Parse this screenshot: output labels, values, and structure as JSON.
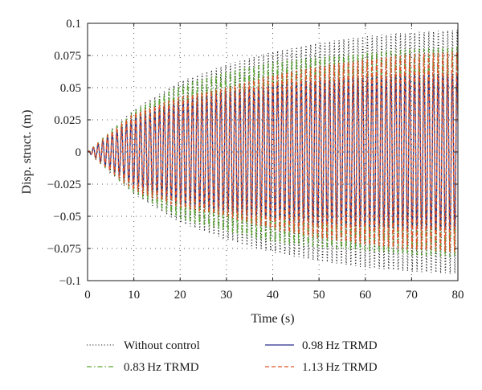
{
  "chart_data": {
    "type": "line",
    "xlabel": "Time (s)",
    "ylabel": "Disp. struct. (m)",
    "xlim": [
      0,
      80
    ],
    "ylim": [
      -0.1,
      0.1
    ],
    "x_ticks": [
      "0",
      "10",
      "20",
      "30",
      "40",
      "50",
      "60",
      "70",
      "80"
    ],
    "y_ticks": [
      "0.1",
      "0.075",
      "0.05",
      "0.025",
      "0",
      "−0.025",
      "−0.05",
      "−0.075",
      "−0.1"
    ],
    "grid": "dotted",
    "legend_position": "bottom",
    "oscillation_frequency_hz": 0.98,
    "series": [
      {
        "name": "Without control",
        "style": "dotted",
        "color": "#222222",
        "envelope": {
          "t": [
            0,
            10,
            20,
            30,
            40,
            50,
            60,
            70,
            80
          ],
          "amplitude": [
            0,
            0.033,
            0.055,
            0.068,
            0.078,
            0.085,
            0.09,
            0.093,
            0.095
          ]
        }
      },
      {
        "name": "0.83 Hz TRMD",
        "style": "dash-dot",
        "color": "#5aa832",
        "envelope": {
          "t": [
            0,
            10,
            20,
            30,
            40,
            50,
            60,
            70,
            80
          ],
          "amplitude": [
            0,
            0.032,
            0.052,
            0.062,
            0.07,
            0.074,
            0.077,
            0.08,
            0.082
          ]
        }
      },
      {
        "name": "0.98 Hz TRMD",
        "style": "solid",
        "color": "#2b2f8f",
        "envelope": {
          "t": [
            0,
            10,
            20,
            30,
            40,
            50,
            60,
            70,
            80
          ],
          "amplitude": [
            0,
            0.026,
            0.04,
            0.047,
            0.052,
            0.056,
            0.058,
            0.06,
            0.061
          ]
        }
      },
      {
        "name": "1.13 Hz TRMD",
        "style": "dashed",
        "color": "#e0532a",
        "envelope": {
          "t": [
            0,
            10,
            20,
            30,
            40,
            50,
            60,
            70,
            80
          ],
          "amplitude": [
            0,
            0.03,
            0.043,
            0.05,
            0.06,
            0.067,
            0.072,
            0.076,
            0.078
          ]
        }
      }
    ]
  }
}
